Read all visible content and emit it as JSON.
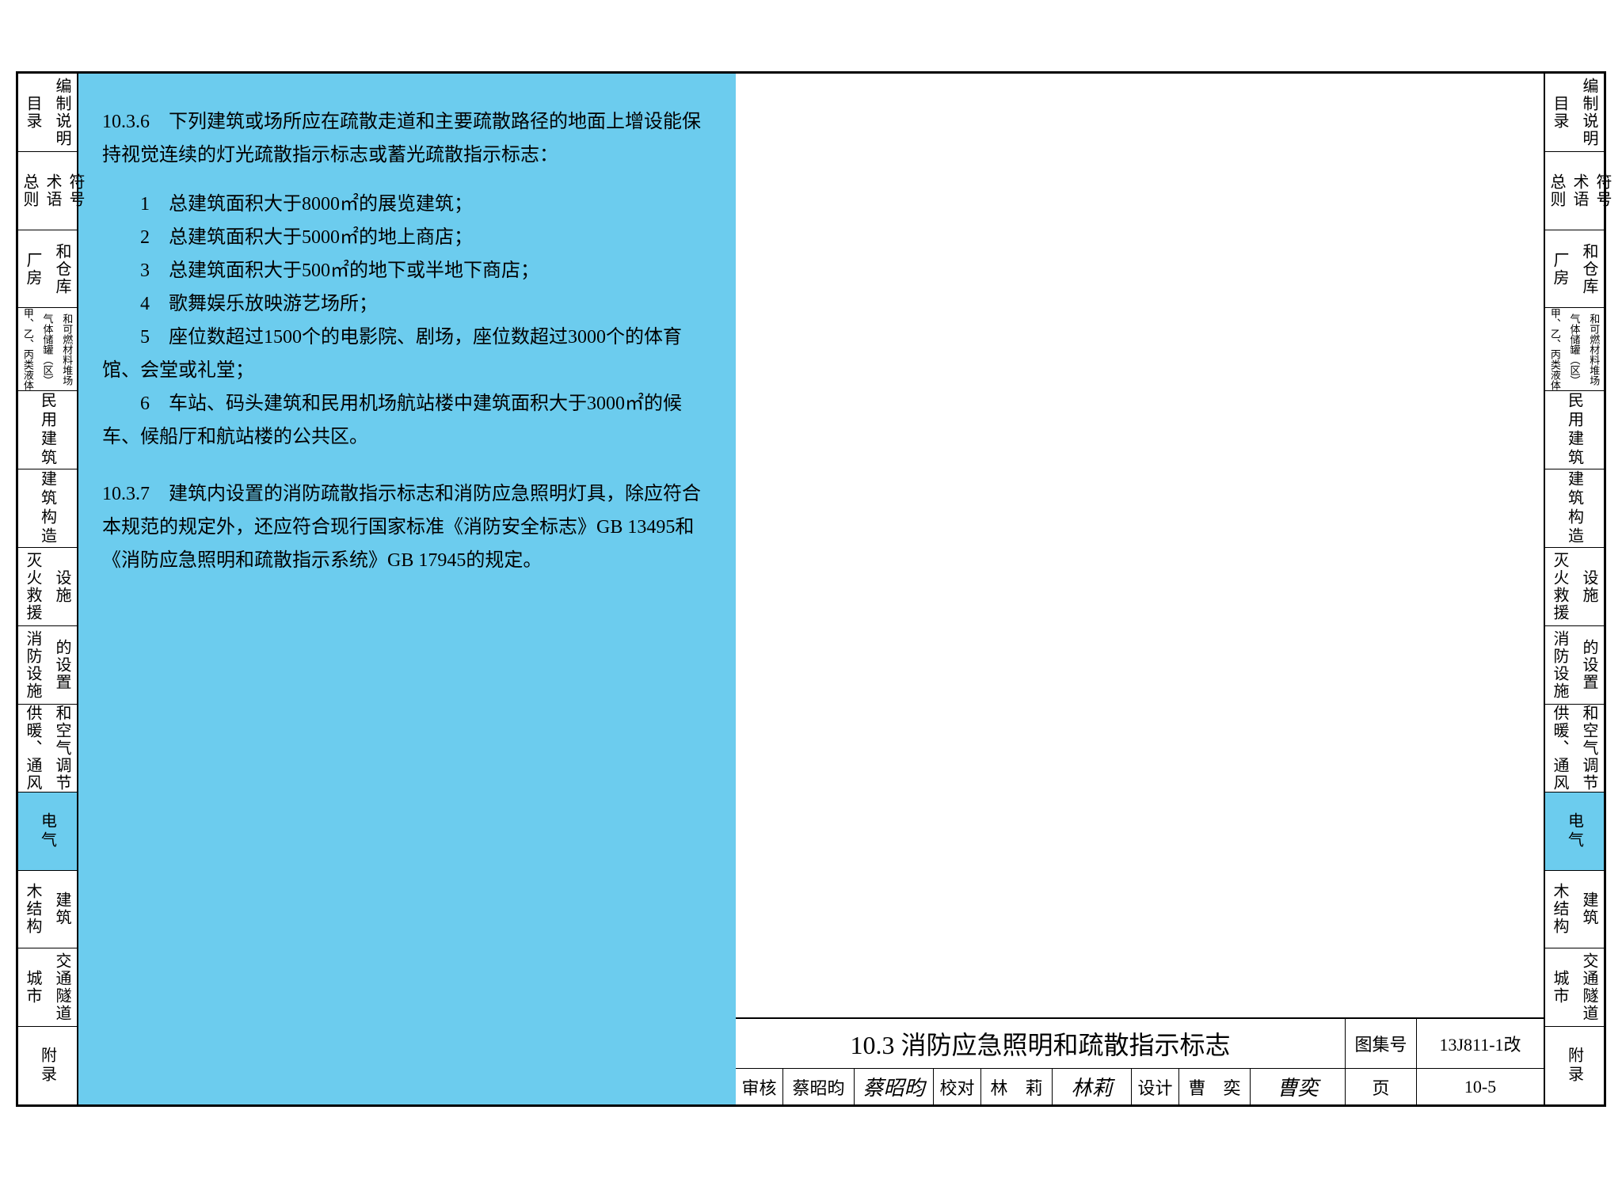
{
  "colors": {
    "highlight": "#6cccee",
    "border": "#000000",
    "bg": "#ffffff",
    "text": "#000000"
  },
  "index_tabs": [
    {
      "cols": [
        "目录",
        "编制说明"
      ],
      "active": false
    },
    {
      "cols": [
        "总则",
        "术语",
        "符号"
      ],
      "active": false
    },
    {
      "cols": [
        "厂房",
        "和仓库"
      ],
      "active": false
    },
    {
      "cols": [
        "甲、乙、丙类液体",
        "气体储罐（区）",
        "和可燃材料堆场"
      ],
      "active": false,
      "small": true
    },
    {
      "cols": [
        "民用建筑"
      ],
      "active": false
    },
    {
      "cols": [
        "建筑构造"
      ],
      "active": false
    },
    {
      "cols": [
        "灭火救援",
        "设施"
      ],
      "active": false
    },
    {
      "cols": [
        "消防设施",
        "的设置"
      ],
      "active": false
    },
    {
      "cols": [
        "供暖、通风",
        "和空气调节"
      ],
      "active": false
    },
    {
      "cols": [
        "电气"
      ],
      "active": true
    },
    {
      "cols": [
        "木结构",
        "建筑"
      ],
      "active": false
    },
    {
      "cols": [
        "城市",
        "交通隧道"
      ],
      "active": false
    },
    {
      "cols": [
        "附录"
      ],
      "active": false
    }
  ],
  "content": {
    "p1_head": "10.3.6　下列建筑或场所应在疏散走道和主要疏散路径的地面上增设能保持视觉连续的灯光疏散指示标志或蓄光疏散指示标志：",
    "items": [
      "1　总建筑面积大于8000㎡的展览建筑；",
      "2　总建筑面积大于5000㎡的地上商店；",
      "3　总建筑面积大于500㎡的地下或半地下商店；",
      "4　歌舞娱乐放映游艺场所；",
      "5　座位数超过1500个的电影院、剧场，座位数超过3000个的体育馆、会堂或礼堂；",
      "6　车站、码头建筑和民用机场航站楼中建筑面积大于3000㎡的候车、候船厅和航站楼的公共区。"
    ],
    "p2": "10.3.7　建筑内设置的消防疏散指示标志和消防应急照明灯具，除应符合本规范的规定外，还应符合现行国家标准《消防安全标志》GB 13495和《消防应急照明和疏散指示系统》GB 17945的规定。"
  },
  "title_block": {
    "section_title": "10.3 消防应急照明和疏散指示标志",
    "atlas_label": "图集号",
    "atlas_value": "13J811-1改",
    "page_label": "页",
    "page_value": "10-5",
    "review_label": "审核",
    "review_name": "蔡昭昀",
    "review_sig": "蔡昭昀",
    "check_label": "校对",
    "check_name": "林　莉",
    "check_sig": "林莉",
    "design_label": "设计",
    "design_name": "曹　奕",
    "design_sig": "曹奕"
  }
}
